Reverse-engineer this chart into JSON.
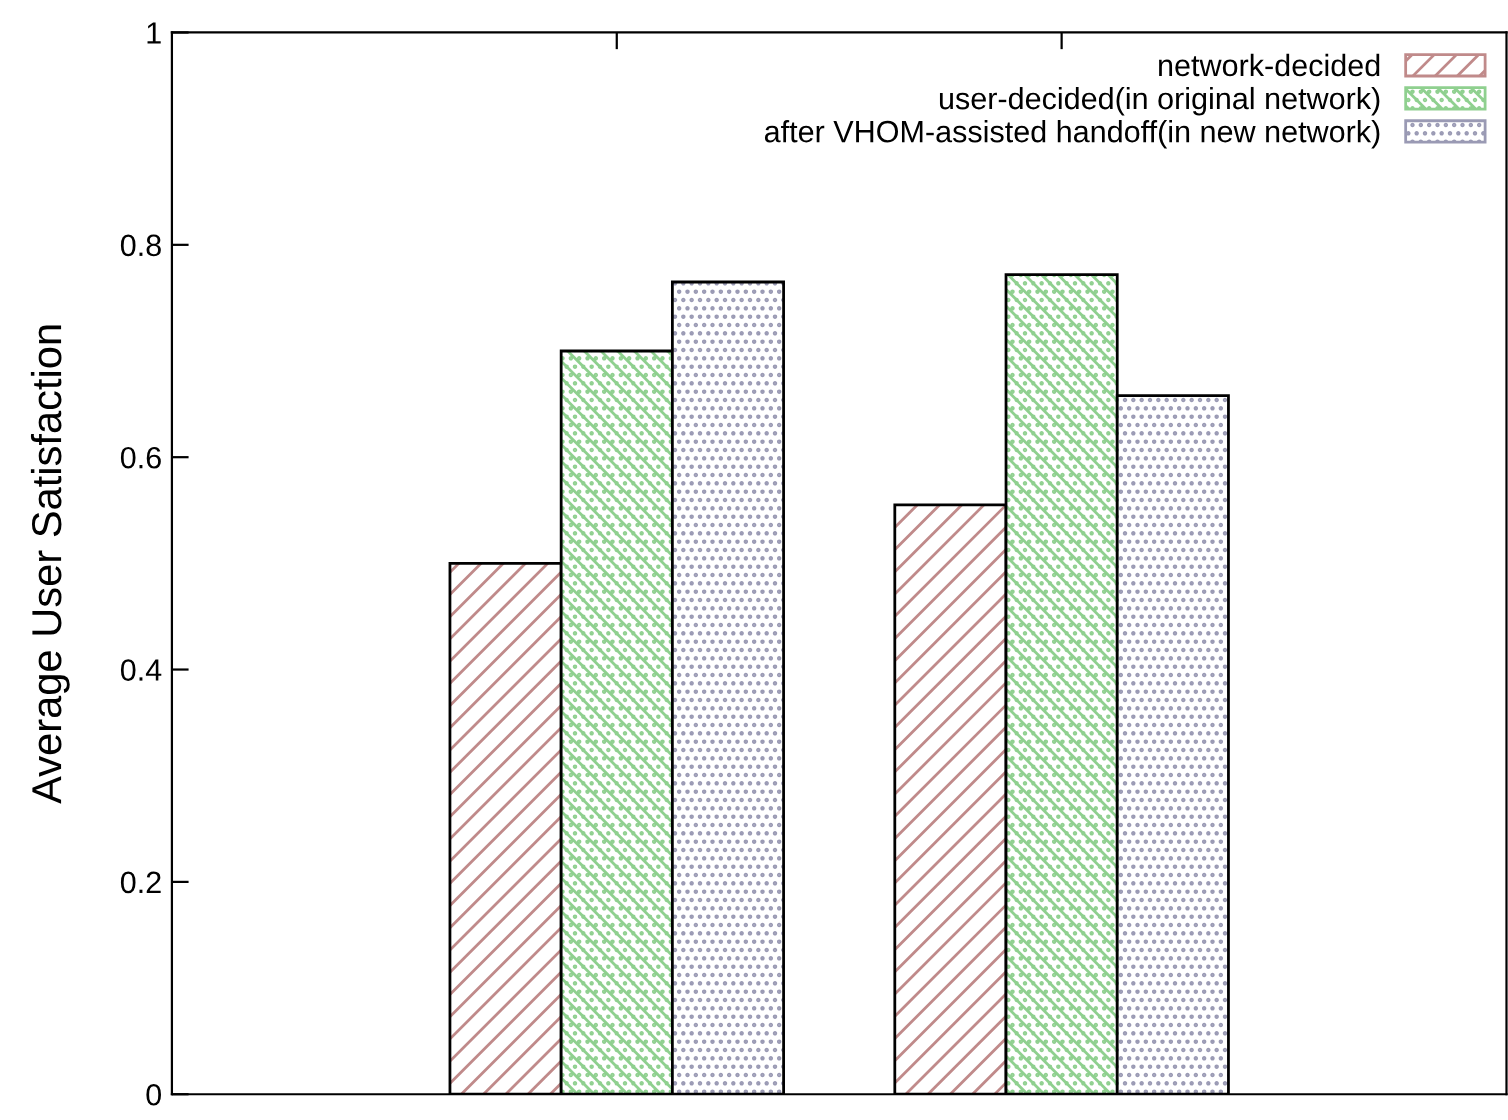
{
  "chart_data": {
    "type": "bar",
    "ylabel": "Average User Satisfaction",
    "categories": [
      null,
      null
    ],
    "series": [
      {
        "name": "network-decided",
        "color": "#c08a8a",
        "values": [
          0.5,
          0.555
        ]
      },
      {
        "name": "user-decided(in original network)",
        "color": "#8fd08f",
        "values": [
          0.7,
          0.772
        ]
      },
      {
        "name": "after VHOM-assisted handoff(in new network)",
        "color": "#9a9ab4",
        "values": [
          0.765,
          0.658
        ]
      }
    ],
    "ylim": [
      0,
      1
    ],
    "yticks": [
      0,
      0.2,
      0.4,
      0.6,
      0.8,
      1
    ],
    "grid": false,
    "legend": "top right"
  }
}
